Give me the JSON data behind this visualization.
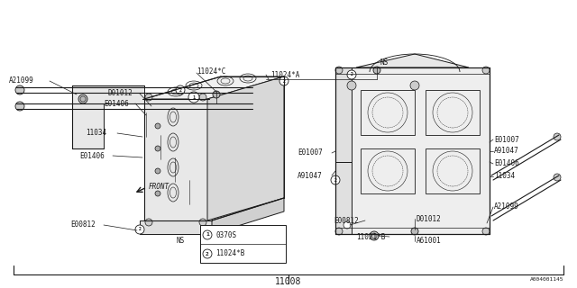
{
  "title": "11008",
  "bg_color": "#ffffff",
  "line_color": "#1a1a1a",
  "watermark": "A004001145",
  "fig_width": 6.4,
  "fig_height": 3.2,
  "legend": [
    {
      "num": "1",
      "text": "0370S"
    },
    {
      "num": "2",
      "text": "11024*B"
    }
  ]
}
